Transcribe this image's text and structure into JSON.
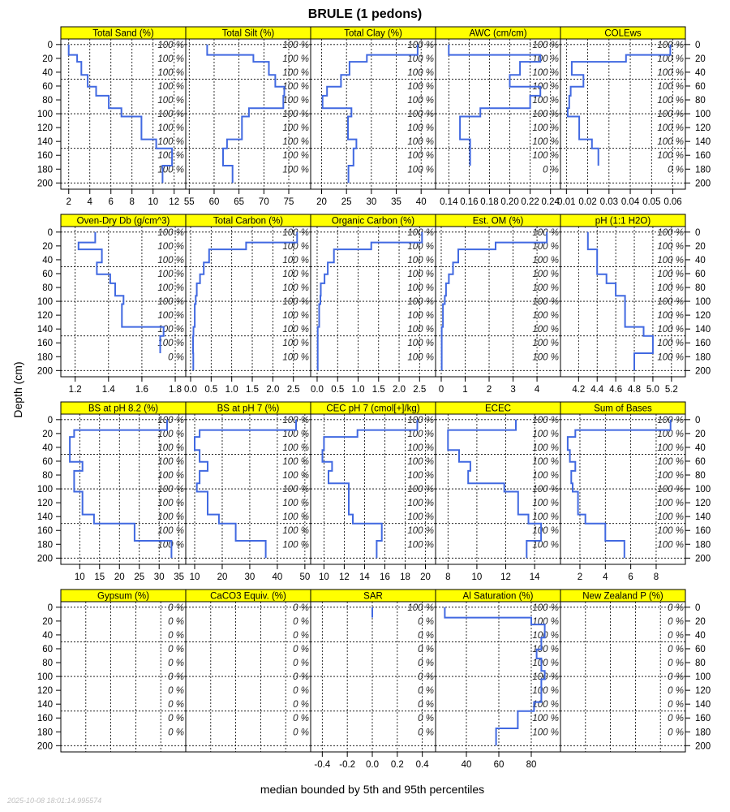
{
  "chart_data": {
    "type": "line",
    "title": "BRULE (1 pedons)",
    "xlabel": "median bounded by 5th and 95th percentiles",
    "ylabel": "Depth (cm)",
    "timestamp": "2025-10-08 18:01:14.995574",
    "ylim": [
      209,
      -8
    ],
    "depth_ticks": [
      "0",
      "20",
      "40",
      "60",
      "80",
      "100",
      "120",
      "140",
      "160",
      "180",
      "200"
    ],
    "depth_grid": [
      0,
      50,
      100,
      150,
      200
    ],
    "pct_label_depths": [
      0,
      20,
      40,
      60,
      80,
      100,
      120,
      140,
      160,
      180
    ],
    "horizon_boundaries": [
      0,
      15,
      25,
      44,
      61,
      74,
      92,
      104,
      137,
      150,
      175,
      200
    ],
    "line_color": "#4169E1",
    "strip_color": "#FFFF00",
    "panels": [
      {
        "title": "Total Sand (%)",
        "xlim": [
          1.25,
          13.1
        ],
        "ticks": [
          "2",
          "4",
          "6",
          "8",
          "10",
          "12"
        ],
        "values": [
          2.0,
          2.8,
          3.2,
          3.8,
          4.6,
          5.8,
          7.0,
          8.9,
          10.3,
          11.8,
          10.9
        ],
        "pct": [
          "100 %",
          "100 %",
          "100 %",
          "100 %",
          "100 %",
          "100 %",
          "100 %",
          "100 %",
          "100 %",
          "100 %"
        ]
      },
      {
        "title": "Total Silt (%)",
        "xlim": [
          54.3,
          79.4
        ],
        "ticks": [
          "55",
          "60",
          "65",
          "70",
          "75"
        ],
        "values": [
          58.6,
          67.9,
          71.0,
          72.3,
          74.1,
          73.9,
          67.0,
          65.6,
          62.6,
          61.8,
          63.7
        ],
        "pct": [
          "100 %",
          "100 %",
          "100 %",
          "100 %",
          "100 %",
          "100 %",
          "100 %",
          "100 %",
          "100 %",
          "100 %"
        ]
      },
      {
        "title": "Total Clay (%)",
        "xlim": [
          17.8,
          42.9
        ],
        "ticks": [
          "20",
          "25",
          "30",
          "35",
          "40"
        ],
        "values": [
          39.3,
          29.1,
          25.6,
          23.9,
          21.1,
          20.2,
          26.0,
          25.3,
          27.0,
          26.4,
          25.4
        ],
        "pct": [
          "100 %",
          "100 %",
          "100 %",
          "100 %",
          "100 %",
          "100 %",
          "100 %",
          "100 %",
          "100 %",
          "100 %"
        ]
      },
      {
        "title": "AWC (cm/cm)",
        "xlim": [
          0.127,
          0.2498
        ],
        "ticks": [
          "0.14",
          "0.16",
          "0.18",
          "0.20",
          "0.22",
          "0.24"
        ],
        "values": [
          0.14,
          0.23,
          0.21,
          0.2,
          0.23,
          0.22,
          0.171,
          0.151,
          0.161,
          0.161,
          null
        ],
        "pct": [
          "100 %",
          "100 %",
          "100 %",
          "100 %",
          "100 %",
          "100 %",
          "100 %",
          "100 %",
          "100 %",
          "0 %"
        ]
      },
      {
        "title": "COLEws",
        "xlim": [
          0.0072,
          0.0659
        ],
        "ticks": [
          "0.01",
          "0.02",
          "0.03",
          "0.04",
          "0.05",
          "0.06"
        ],
        "values": [
          0.0588,
          0.038,
          0.0125,
          0.018,
          0.012,
          0.0113,
          0.0106,
          0.016,
          0.022,
          0.025,
          null
        ],
        "pct": [
          "100 %",
          "100 %",
          "100 %",
          "100 %",
          "100 %",
          "100 %",
          "100 %",
          "100 %",
          "100 %",
          "0 %"
        ]
      },
      {
        "title": "Oven-Dry Db (g/cm^3)",
        "xlim": [
          1.114,
          1.863
        ],
        "ticks": [
          "1.2",
          "1.4",
          "1.6",
          "1.8"
        ],
        "values": [
          1.32,
          1.22,
          1.36,
          1.33,
          1.41,
          1.44,
          1.49,
          1.48,
          1.73,
          1.71,
          null
        ],
        "pct": [
          "100 %",
          "100 %",
          "100 %",
          "100 %",
          "100 %",
          "100 %",
          "100 %",
          "100 %",
          "100 %",
          "0 %"
        ]
      },
      {
        "title": "Total Carbon (%)",
        "xlim": [
          -0.118,
          2.92
        ],
        "ticks": [
          "0.0",
          "0.5",
          "1.0",
          "1.5",
          "2.0",
          "2.5"
        ],
        "values": [
          2.59,
          1.35,
          0.45,
          0.32,
          0.23,
          0.15,
          0.125,
          0.1,
          0.07,
          0.06,
          0.065
        ],
        "pct": [
          "100 %",
          "100 %",
          "100 %",
          "100 %",
          "100 %",
          "100 %",
          "100 %",
          "100 %",
          "100 %",
          "100 %"
        ]
      },
      {
        "title": "Organic Carbon (%)",
        "xlim": [
          -0.158,
          2.89
        ],
        "ticks": [
          "0.0",
          "0.5",
          "1.0",
          "1.5",
          "2.0",
          "2.5"
        ],
        "values": [
          2.56,
          1.32,
          0.41,
          0.26,
          0.18,
          0.09,
          0.08,
          0.05,
          0.015,
          0.015,
          0.015
        ],
        "pct": [
          "100 %",
          "100 %",
          "100 %",
          "100 %",
          "100 %",
          "100 %",
          "100 %",
          "100 %",
          "100 %",
          "100 %"
        ]
      },
      {
        "title": "Est. OM (%)",
        "xlim": [
          -0.237,
          4.98
        ],
        "ticks": [
          "0",
          "1",
          "2",
          "3",
          "4"
        ],
        "values": [
          4.41,
          2.27,
          0.71,
          0.49,
          0.32,
          0.2,
          0.15,
          0.07,
          0.02,
          0.02,
          0.02
        ],
        "pct": [
          "100 %",
          "100 %",
          "100 %",
          "100 %",
          "100 %",
          "100 %",
          "100 %",
          "100 %",
          "100 %",
          "100 %"
        ]
      },
      {
        "title": "pH (1:1 H2O)",
        "xlim": [
          4.005,
          5.35
        ],
        "ticks": [
          "4.2",
          "4.4",
          "4.6",
          "4.8",
          "5.0",
          "5.2"
        ],
        "values": [
          4.3,
          4.3,
          4.4,
          4.4,
          4.5,
          4.6,
          4.7,
          4.7,
          4.9,
          5.0,
          4.8
        ],
        "pct": [
          "100 %",
          "100 %",
          "100 %",
          "100 %",
          "100 %",
          "100 %",
          "100 %",
          "100 %",
          "100 %",
          "100 %"
        ]
      },
      {
        "title": "BS at pH 8.2 (%)",
        "xlim": [
          5.24,
          36.7
        ],
        "ticks": [
          "10",
          "15",
          "20",
          "25",
          "30",
          "35"
        ],
        "values": [
          32.0,
          8.6,
          7.5,
          7.5,
          10.7,
          8.6,
          8.6,
          10.7,
          13.6,
          23.8,
          33.1
        ],
        "pct": [
          "100 %",
          "100 %",
          "100 %",
          "100 %",
          "100 %",
          "100 %",
          "100 %",
          "100 %",
          "100 %",
          "100 %"
        ]
      },
      {
        "title": "BS at pH 7 (%)",
        "xlim": [
          6.76,
          52.1
        ],
        "ticks": [
          "10",
          "20",
          "30",
          "40",
          "50"
        ],
        "values": [
          46.8,
          11.8,
          10.0,
          11.8,
          14.7,
          11.8,
          10.8,
          14.7,
          18.8,
          24.9,
          35.8
        ],
        "pct": [
          "100 %",
          "100 %",
          "100 %",
          "100 %",
          "100 %",
          "100 %",
          "100 %",
          "100 %",
          "100 %",
          "100 %"
        ]
      },
      {
        "title": "CEC pH 7 (cmol[+]/kg)",
        "xlim": [
          8.69,
          21.0
        ],
        "ticks": [
          "10",
          "12",
          "14",
          "16",
          "18",
          "20"
        ],
        "values": [
          19.2,
          13.3,
          10.0,
          9.85,
          10.8,
          10.45,
          12.45,
          12.45,
          12.85,
          15.7,
          15.2
        ],
        "pct": [
          "100 %",
          "100 %",
          "100 %",
          "100 %",
          "100 %",
          "100 %",
          "100 %",
          "100 %",
          "100 %",
          "100 %"
        ]
      },
      {
        "title": "ECEC",
        "xlim": [
          7.14,
          15.79
        ],
        "ticks": [
          "8",
          "10",
          "12",
          "14"
        ],
        "values": [
          12.7,
          8.0,
          8.0,
          8.77,
          9.55,
          9.4,
          11.9,
          12.86,
          13.57,
          14.45,
          13.45
        ],
        "pct": [
          "100 %",
          "100 %",
          "100 %",
          "100 %",
          "100 %",
          "100 %",
          "100 %",
          "100 %",
          "100 %",
          "100 %"
        ]
      },
      {
        "title": "Sum of Bases",
        "xlim": [
          0.47,
          10.3
        ],
        "ticks": [
          "2",
          "4",
          "6",
          "8"
        ],
        "values": [
          9.13,
          1.64,
          1.04,
          1.21,
          1.64,
          1.32,
          1.43,
          1.85,
          2.43,
          4.0,
          5.5
        ],
        "pct": [
          "100 %",
          "100 %",
          "100 %",
          "100 %",
          "100 %",
          "100 %",
          "100 %",
          "100 %",
          "100 %",
          "100 %"
        ]
      },
      {
        "title": "Gypsum (%)",
        "xlim": [
          0,
          5
        ],
        "ticks": [],
        "values": [
          null,
          null,
          null,
          null,
          null,
          null,
          null,
          null,
          null,
          null,
          null
        ],
        "pct": [
          "0 %",
          "0 %",
          "0 %",
          "0 %",
          "0 %",
          "0 %",
          "0 %",
          "0 %",
          "0 %",
          "0 %"
        ]
      },
      {
        "title": "CaCO3 Equiv. (%)",
        "xlim": [
          0,
          5
        ],
        "ticks": [],
        "values": [
          null,
          null,
          null,
          null,
          null,
          null,
          null,
          null,
          null,
          null,
          null
        ],
        "pct": [
          "0 %",
          "0 %",
          "0 %",
          "0 %",
          "0 %",
          "0 %",
          "0 %",
          "0 %",
          "0 %",
          "0 %"
        ]
      },
      {
        "title": "SAR",
        "xlim": [
          -0.493,
          0.506
        ],
        "ticks": [
          "-0.4",
          "-0.2",
          "0.0",
          "0.2",
          "0.4"
        ],
        "values": [
          0,
          null,
          null,
          null,
          null,
          null,
          null,
          null,
          null,
          null,
          null
        ],
        "pct": [
          "100 %",
          "0 %",
          "0 %",
          "0 %",
          "0 %",
          "0 %",
          "0 %",
          "0 %",
          "0 %",
          "0 %"
        ]
      },
      {
        "title": "Al Saturation (%)",
        "xlim": [
          21,
          98
        ],
        "ticks": [
          "40",
          "60",
          "80"
        ],
        "values": [
          26.7,
          80,
          88.3,
          86.2,
          83.3,
          86.2,
          88.3,
          86.2,
          81.7,
          71.7,
          58.3
        ],
        "pct": [
          "100 %",
          "100 %",
          "100 %",
          "100 %",
          "100 %",
          "100 %",
          "100 %",
          "100 %",
          "100 %",
          "100 %"
        ]
      },
      {
        "title": "New Zealand P (%)",
        "xlim": [
          0,
          5
        ],
        "ticks": [],
        "values": [
          null,
          null,
          null,
          null,
          null,
          null,
          null,
          null,
          null,
          null,
          null
        ],
        "pct": [
          "0 %",
          "0 %",
          "0 %",
          "0 %",
          "0 %",
          "0 %",
          "0 %",
          "0 %",
          "0 %",
          "0 %"
        ]
      }
    ]
  }
}
